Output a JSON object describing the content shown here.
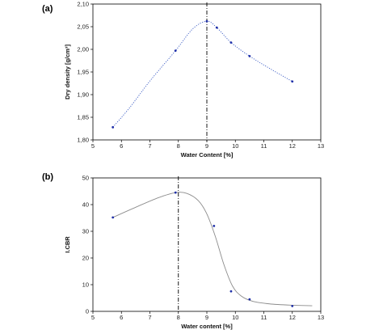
{
  "chart_data": [
    {
      "panel_label": "(a)",
      "type": "scatter",
      "ylabel": "Dry density [g/cm³]",
      "xlabel": "Water Content [%]",
      "xlim": [
        5,
        13
      ],
      "ylim": [
        1.8,
        2.1
      ],
      "xticks": [
        "5",
        "6",
        "7",
        "8",
        "9",
        "10",
        "11",
        "12",
        "13"
      ],
      "yticks": [
        "1,80",
        "1,85",
        "1,90",
        "1,95",
        "2,00",
        "2,05",
        "2,10"
      ],
      "grid": false,
      "points": [
        {
          "x": 5.7,
          "y": 1.828
        },
        {
          "x": 7.9,
          "y": 1.997
        },
        {
          "x": 9.0,
          "y": 2.062
        },
        {
          "x": 9.35,
          "y": 2.048
        },
        {
          "x": 9.85,
          "y": 2.015
        },
        {
          "x": 10.5,
          "y": 1.985
        },
        {
          "x": 12.0,
          "y": 1.929
        }
      ],
      "fit_curve": {
        "style": "dotted",
        "color": "#3b5cc4",
        "x": [
          5.7,
          6.3,
          7.0,
          7.9,
          8.5,
          9.0,
          9.35,
          9.85,
          10.5,
          11.2,
          12.0
        ],
        "y": [
          1.828,
          1.872,
          1.93,
          1.997,
          2.045,
          2.062,
          2.048,
          2.015,
          1.985,
          1.958,
          1.929
        ]
      },
      "reference_line": {
        "x": 9.0,
        "style": "dash-dot"
      },
      "point_color": "#1f2fa8"
    },
    {
      "panel_label": "(b)",
      "type": "scatter",
      "ylabel": "I.CBR",
      "xlabel": "Water content [%]",
      "xlim": [
        5,
        13
      ],
      "ylim": [
        0,
        50
      ],
      "xticks": [
        "5",
        "6",
        "7",
        "8",
        "9",
        "10",
        "11",
        "12",
        "13"
      ],
      "yticks": [
        "0",
        "10",
        "20",
        "30",
        "40",
        "50"
      ],
      "grid": false,
      "points": [
        {
          "x": 5.7,
          "y": 35.2
        },
        {
          "x": 7.9,
          "y": 44.5
        },
        {
          "x": 9.25,
          "y": 32.0
        },
        {
          "x": 9.85,
          "y": 7.5
        },
        {
          "x": 10.5,
          "y": 4.5
        },
        {
          "x": 12.0,
          "y": 2.0
        }
      ],
      "fit_curve": {
        "style": "solid",
        "color": "#8c8c8c",
        "x": [
          5.7,
          6.5,
          7.3,
          7.9,
          8.3,
          8.7,
          9.0,
          9.3,
          9.6,
          9.9,
          10.2,
          10.6,
          11.2,
          12.0,
          12.7
        ],
        "y": [
          35.2,
          39.0,
          42.6,
          44.5,
          44.2,
          41.5,
          36.5,
          28.0,
          17.5,
          9.5,
          5.8,
          3.8,
          2.8,
          2.3,
          2.1
        ]
      },
      "reference_line": {
        "x": 8.0,
        "style": "dash-dot"
      },
      "point_color": "#1f2fa8"
    }
  ]
}
